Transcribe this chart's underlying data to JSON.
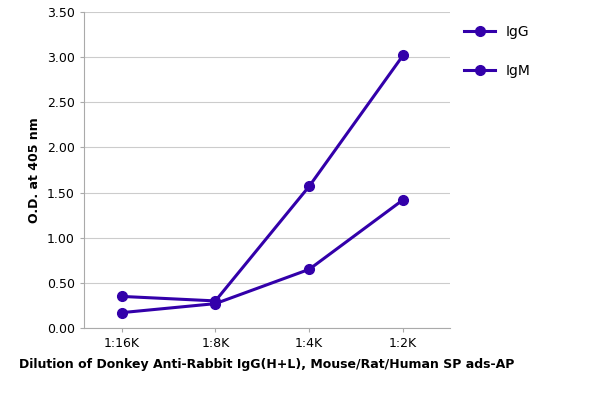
{
  "x_labels": [
    "1:16K",
    "1:8K",
    "1:4K",
    "1:2K"
  ],
  "x_positions": [
    1,
    2,
    3,
    4
  ],
  "IgG_values": [
    0.35,
    0.3,
    1.57,
    3.02
  ],
  "IgM_values": [
    0.17,
    0.27,
    0.65,
    1.42
  ],
  "line_color": "#3300AA",
  "marker_style": "o",
  "marker_size": 7,
  "line_width": 2.2,
  "ylabel": "O.D. at 405 nm",
  "xlabel": "Dilution of Donkey Anti-Rabbit IgG(H+L), Mouse/Rat/Human SP ads-AP",
  "ylim": [
    0.0,
    3.5
  ],
  "yticks": [
    0.0,
    0.5,
    1.0,
    1.5,
    2.0,
    2.5,
    3.0,
    3.5
  ],
  "legend_labels": [
    "IgG",
    "IgM"
  ],
  "axis_label_fontsize": 9,
  "tick_fontsize": 9,
  "legend_fontsize": 10,
  "background_color": "#ffffff",
  "grid_color": "#cccccc"
}
